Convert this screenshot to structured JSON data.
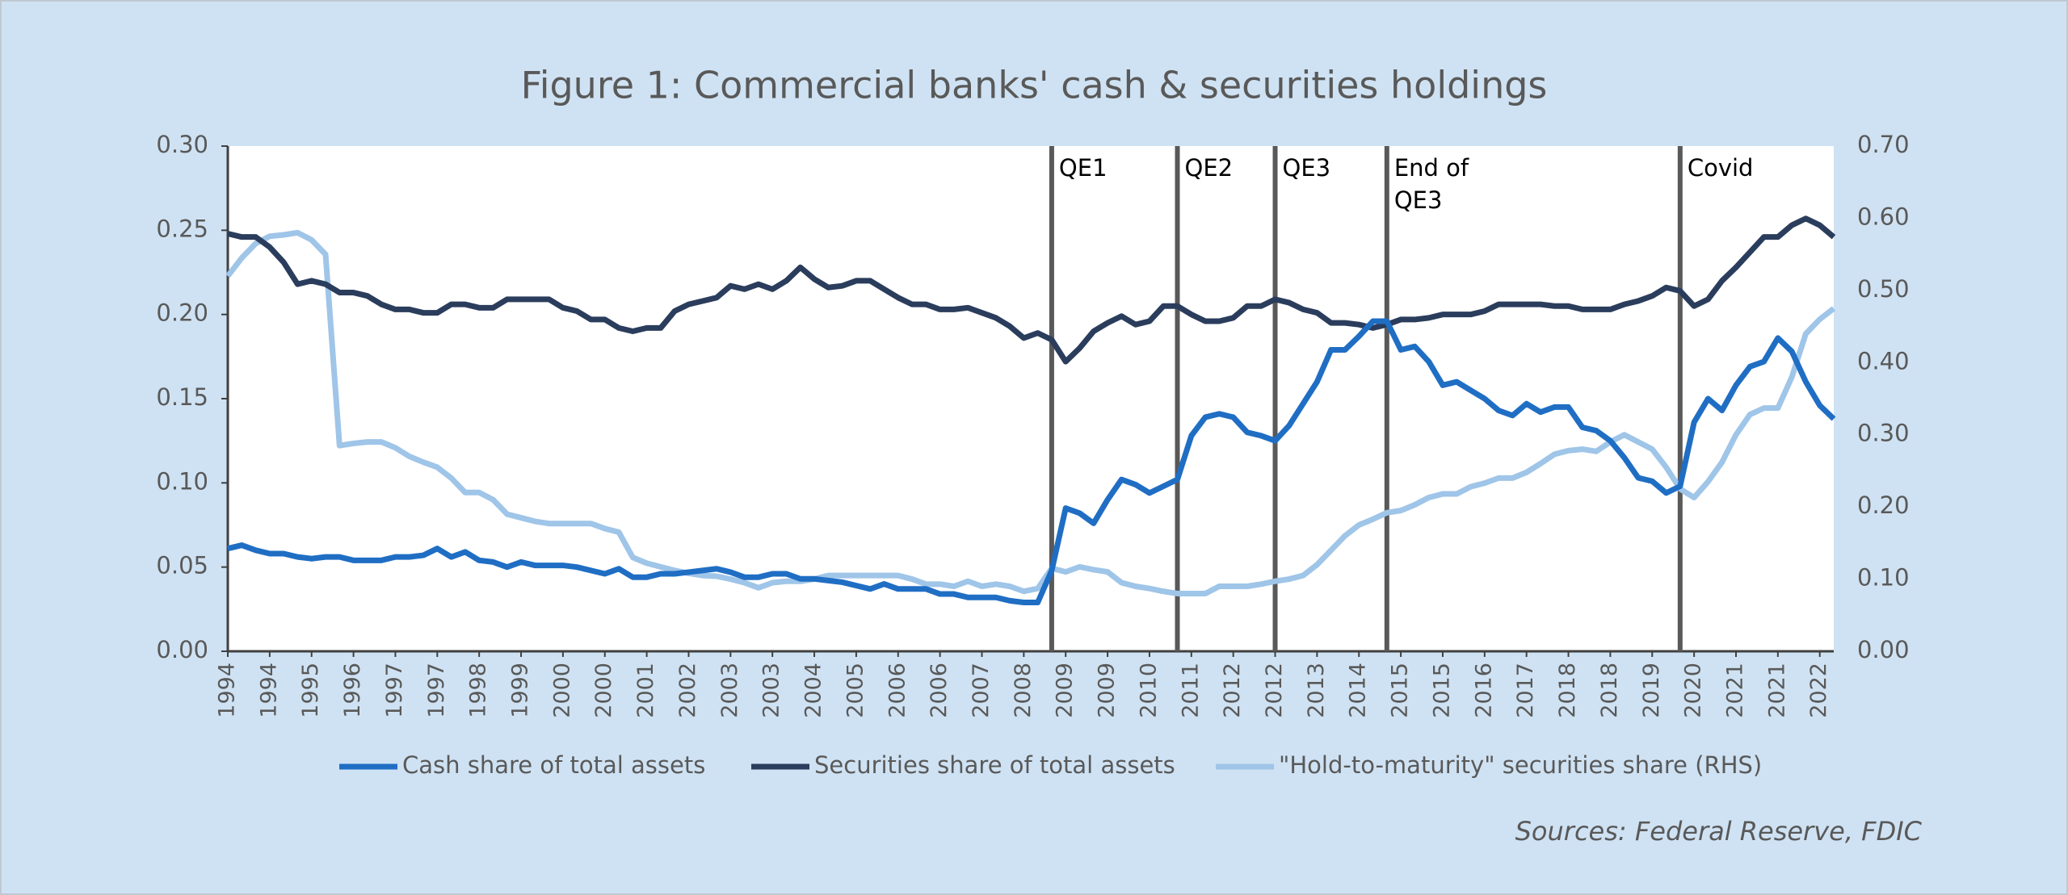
{
  "chart_data": {
    "type": "line",
    "title": "Figure 1: Commercial banks' cash & securities holdings",
    "source": "Sources: Federal Reserve, FDIC",
    "categories": [
      "1994",
      null,
      null,
      "1994",
      null,
      null,
      "1995",
      null,
      null,
      "1996",
      null,
      null,
      "1997",
      null,
      null,
      "1997",
      null,
      null,
      "1998",
      null,
      null,
      "1999",
      null,
      null,
      "2000",
      null,
      null,
      "2000",
      null,
      null,
      "2001",
      null,
      null,
      "2002",
      null,
      null,
      "2003",
      null,
      null,
      "2003",
      null,
      null,
      "2004",
      null,
      null,
      "2005",
      null,
      null,
      "2006",
      null,
      null,
      "2006",
      null,
      null,
      "2007",
      null,
      null,
      "2008",
      null,
      null,
      "2009",
      null,
      null,
      "2009",
      null,
      null,
      "2010",
      null,
      null,
      "2011",
      null,
      null,
      "2012",
      null,
      null,
      "2012",
      null,
      null,
      "2013",
      null,
      null,
      "2014",
      null,
      null,
      "2015",
      null,
      null,
      "2015",
      null,
      null,
      "2016",
      null,
      null,
      "2017",
      null,
      null,
      "2018",
      null,
      null,
      "2018",
      null,
      null,
      "2019",
      null,
      null,
      "2020",
      null,
      null,
      "2021",
      null,
      null,
      "2021",
      null,
      null,
      "2022",
      null
    ],
    "series": [
      {
        "name": "Cash share of total assets",
        "color": "#1f6ec4",
        "values": [
          0.061,
          0.063,
          0.06,
          0.058,
          0.058,
          0.056,
          0.055,
          0.056,
          0.056,
          0.054,
          0.054,
          0.054,
          0.056,
          0.056,
          0.057,
          0.061,
          0.056,
          0.059,
          0.054,
          0.053,
          0.05,
          0.053,
          0.051,
          0.051,
          0.051,
          0.05,
          0.048,
          0.046,
          0.049,
          0.044,
          0.044,
          0.046,
          0.046,
          0.047,
          0.048,
          0.049,
          0.047,
          0.044,
          0.044,
          0.046,
          0.046,
          0.043,
          0.043,
          0.042,
          0.041,
          0.039,
          0.037,
          0.04,
          0.037,
          0.037,
          0.037,
          0.034,
          0.034,
          0.032,
          0.032,
          0.032,
          0.03,
          0.029,
          0.029,
          0.048,
          0.085,
          0.082,
          0.076,
          0.09,
          0.102,
          0.099,
          0.094,
          0.098,
          0.102,
          0.128,
          0.139,
          0.141,
          0.139,
          0.13,
          0.128,
          0.125,
          0.134,
          0.147,
          0.16,
          0.179,
          0.179,
          0.187,
          0.196,
          0.196,
          0.179,
          0.181,
          0.172,
          0.158,
          0.16,
          0.155,
          0.15,
          0.143,
          0.14,
          0.147,
          0.142,
          0.145,
          0.145,
          0.133,
          0.131,
          0.125,
          0.115,
          0.103,
          0.101,
          0.094,
          0.098,
          0.136,
          0.15,
          0.143,
          0.158,
          0.169,
          0.172,
          0.186,
          0.178,
          0.16,
          0.146,
          0.138
        ]
      },
      {
        "name": "Securities share of total assets",
        "color": "#2b3d5c",
        "values": [
          0.248,
          0.246,
          0.246,
          0.24,
          0.231,
          0.218,
          0.22,
          0.218,
          0.213,
          0.213,
          0.211,
          0.206,
          0.203,
          0.203,
          0.201,
          0.201,
          0.206,
          0.206,
          0.204,
          0.204,
          0.209,
          0.209,
          0.209,
          0.209,
          0.204,
          0.202,
          0.197,
          0.197,
          0.192,
          0.19,
          0.192,
          0.192,
          0.202,
          0.206,
          0.208,
          0.21,
          0.217,
          0.215,
          0.218,
          0.215,
          0.22,
          0.228,
          0.221,
          0.216,
          0.217,
          0.22,
          0.22,
          0.215,
          0.21,
          0.206,
          0.206,
          0.203,
          0.203,
          0.204,
          0.201,
          0.198,
          0.193,
          0.186,
          0.189,
          0.185,
          0.172,
          0.18,
          0.19,
          0.195,
          0.199,
          0.194,
          0.196,
          0.205,
          0.205,
          0.2,
          0.196,
          0.196,
          0.198,
          0.205,
          0.205,
          0.209,
          0.207,
          0.203,
          0.201,
          0.195,
          0.195,
          0.194,
          0.192,
          0.194,
          0.197,
          0.197,
          0.198,
          0.2,
          0.2,
          0.2,
          0.202,
          0.206,
          0.206,
          0.206,
          0.206,
          0.205,
          0.205,
          0.203,
          0.203,
          0.203,
          0.206,
          0.208,
          0.211,
          0.216,
          0.214,
          0.205,
          0.209,
          0.22,
          0.228,
          0.237,
          0.246,
          0.246,
          0.253,
          0.257,
          0.253,
          0.246
        ]
      },
      {
        "name": "\"Hold-to-maturity\" securities share (RHS)",
        "color": "#9fc5e8",
        "axis": "y2",
        "values": [
          0.52,
          0.545,
          0.565,
          0.575,
          0.577,
          0.58,
          0.57,
          0.55,
          0.285,
          0.288,
          0.29,
          0.29,
          0.282,
          0.27,
          0.262,
          0.255,
          0.24,
          0.22,
          0.22,
          0.21,
          0.19,
          0.185,
          0.18,
          0.177,
          0.177,
          0.177,
          0.177,
          0.17,
          0.165,
          0.13,
          0.122,
          0.117,
          0.112,
          0.108,
          0.105,
          0.104,
          0.1,
          0.095,
          0.088,
          0.095,
          0.097,
          0.097,
          0.1,
          0.105,
          0.105,
          0.105,
          0.105,
          0.105,
          0.105,
          0.1,
          0.093,
          0.093,
          0.09,
          0.097,
          0.09,
          0.093,
          0.09,
          0.083,
          0.087,
          0.115,
          0.11,
          0.117,
          0.113,
          0.11,
          0.095,
          0.09,
          0.087,
          0.083,
          0.08,
          0.08,
          0.08,
          0.09,
          0.09,
          0.09,
          0.093,
          0.097,
          0.1,
          0.105,
          0.12,
          0.14,
          0.16,
          0.175,
          0.183,
          0.192,
          0.195,
          0.203,
          0.213,
          0.218,
          0.218,
          0.228,
          0.233,
          0.24,
          0.24,
          0.248,
          0.26,
          0.273,
          0.278,
          0.28,
          0.277,
          0.29,
          0.3,
          0.29,
          0.28,
          0.255,
          0.225,
          0.213,
          0.235,
          0.262,
          0.3,
          0.328,
          0.337,
          0.337,
          0.38,
          0.44,
          0.46,
          0.475
        ]
      }
    ],
    "ylim": [
      0,
      0.3
    ],
    "yticks": [
      {
        "value": 0,
        "label": "0.00"
      },
      {
        "value": 0.05,
        "label": "0.05"
      },
      {
        "value": 0.1,
        "label": "0.10"
      },
      {
        "value": 0.15,
        "label": "0.15"
      },
      {
        "value": 0.2,
        "label": "0.20"
      },
      {
        "value": 0.25,
        "label": "0.25"
      },
      {
        "value": 0.3,
        "label": "0.30"
      }
    ],
    "y2lim": [
      0,
      0.7
    ],
    "y2ticks": [
      {
        "value": 0,
        "label": "0.00"
      },
      {
        "value": 0.1,
        "label": "0.10"
      },
      {
        "value": 0.2,
        "label": "0.20"
      },
      {
        "value": 0.3,
        "label": "0.30"
      },
      {
        "value": 0.4,
        "label": "0.40"
      },
      {
        "value": 0.5,
        "label": "0.50"
      },
      {
        "value": 0.6,
        "label": "0.60"
      },
      {
        "value": 0.7,
        "label": "0.70"
      }
    ],
    "grid": false,
    "legend": "bottom",
    "annotations": [
      {
        "lines": [
          "QE1"
        ],
        "index": 59
      },
      {
        "lines": [
          "QE2"
        ],
        "index": 68
      },
      {
        "lines": [
          "QE3"
        ],
        "index": 75
      },
      {
        "lines": [
          "End of",
          "QE3"
        ],
        "index": 83
      },
      {
        "lines": [
          "Covid"
        ],
        "index": 104
      }
    ]
  }
}
